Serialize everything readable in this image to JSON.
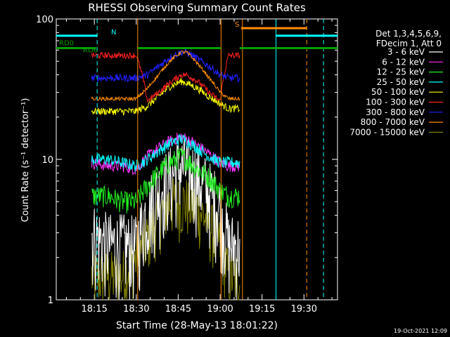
{
  "chart_data": {
    "type": "line",
    "title": "RHESSI Observing Summary Count Rates",
    "xlabel": "Start Time (28-May-13 18:01:22)",
    "ylabel": "Count Rate (s⁻¹ detector⁻¹)",
    "yscale": "log",
    "ylim": [
      1,
      100
    ],
    "y_ticks": [
      {
        "value": 1,
        "label": "1"
      },
      {
        "value": 10,
        "label": "10"
      },
      {
        "value": 100,
        "label": "100"
      }
    ],
    "xlim": [
      "18:01:22",
      "19:42:00"
    ],
    "x_ticks": [
      "18:15",
      "18:30",
      "18:45",
      "19:00",
      "19:15",
      "19:30"
    ],
    "grid": false,
    "legend_position": "right",
    "legend_header": [
      "Det 1,3,4,5,6,9,",
      "FDecim 1, Att 0"
    ],
    "timestamp": "19-Oct-2021 12:09",
    "data_gaps": [
      {
        "start": "18:01:22",
        "end": "18:14:00"
      },
      {
        "start": "19:08:00",
        "end": "19:42:00"
      }
    ],
    "flag_bars": [
      {
        "label": "RD0",
        "color": "#00a000",
        "y": 62,
        "segments": [
          [
            "18:01:22",
            "18:15:30"
          ],
          [
            "18:30:30",
            "19:00:20"
          ],
          [
            "19:07:00",
            "19:32:00"
          ],
          [
            "19:32:00",
            "19:42:00"
          ]
        ]
      },
      {
        "label": "RD6",
        "color": "#00a000",
        "y": 70,
        "segments": []
      },
      {
        "label": "N",
        "color": "#00ffff",
        "y": 76,
        "segments": [
          [
            "18:01:22",
            "18:16:00"
          ],
          [
            "19:20:00",
            "19:42:00"
          ]
        ]
      },
      {
        "label": "S",
        "color": "#ff8c00",
        "y": 86,
        "segments": [
          [
            "19:07:30",
            "19:31:00"
          ]
        ]
      }
    ],
    "markers": [
      {
        "time": "18:16:00",
        "color": "#00ffff",
        "style": "dashed"
      },
      {
        "time": "18:30:30",
        "color": "#ff8c00",
        "style": "solid"
      },
      {
        "time": "19:00:20",
        "color": "#ff8c00",
        "style": "solid"
      },
      {
        "time": "19:08:00",
        "color": "#ff8c00",
        "style": "solid"
      },
      {
        "time": "19:20:00",
        "color": "#00ffff",
        "style": "solid"
      },
      {
        "time": "19:31:00",
        "color": "#ff8c00",
        "style": "dashed"
      },
      {
        "time": "19:37:00",
        "color": "#00ffff",
        "style": "dashed"
      }
    ],
    "x_time_grid": [
      "18:14:00",
      "18:20:00",
      "18:25:00",
      "18:30:00",
      "18:34:00",
      "18:38:00",
      "18:42:00",
      "18:46:00",
      "18:48:00",
      "18:52:00",
      "18:56:00",
      "19:00:00",
      "19:03:00",
      "19:07:00"
    ],
    "series": [
      {
        "name": "3 - 6 keV",
        "color": "#ffffff",
        "noise": 0.65,
        "values": [
          3.0,
          2.5,
          2.5,
          2.4,
          4.5,
          6.0,
          7.5,
          9.0,
          8.8,
          7.5,
          6.0,
          4.5,
          2.5,
          2.5
        ]
      },
      {
        "name": "6 - 12 keV",
        "color": "#ff33ff",
        "noise": 0.1,
        "values": [
          9.5,
          9.0,
          9.0,
          8.5,
          10.5,
          12.0,
          13.5,
          14.5,
          14.0,
          12.5,
          11.0,
          9.5,
          9.0,
          9.0
        ]
      },
      {
        "name": "12 - 25 keV",
        "color": "#22ee22",
        "noise": 0.18,
        "values": [
          5.5,
          5.5,
          5.0,
          5.0,
          6.5,
          8.0,
          9.5,
          10.5,
          10.0,
          8.5,
          7.5,
          6.0,
          5.5,
          5.5
        ]
      },
      {
        "name": "25 - 50 keV",
        "color": "#00ffff",
        "noise": 0.1,
        "values": [
          10.0,
          10.0,
          9.5,
          9.0,
          10.0,
          11.5,
          13.0,
          14.0,
          13.5,
          12.0,
          10.5,
          9.5,
          9.5,
          9.5
        ]
      },
      {
        "name": "50 - 100 keV",
        "color": "#ffff00",
        "noise": 0.06,
        "values": [
          22.0,
          22.0,
          22.0,
          22.0,
          24.0,
          28.0,
          33.0,
          36.0,
          35.0,
          32.0,
          28.0,
          25.0,
          23.0,
          23.0
        ]
      },
      {
        "name": "100 - 300 keV",
        "color": "#ff2020",
        "noise": 0.05,
        "values": [
          55.0,
          55.0,
          55.0,
          55.0,
          26.0,
          30.0,
          35.0,
          40.0,
          40.0,
          36.0,
          30.0,
          26.0,
          55.0,
          55.0
        ]
      },
      {
        "name": "300 - 800 keV",
        "color": "#2020ff",
        "noise": 0.06,
        "values": [
          38.0,
          38.0,
          38.0,
          38.0,
          40.0,
          46.0,
          53.0,
          58.0,
          58.0,
          52.0,
          46.0,
          40.0,
          38.0,
          38.0
        ]
      },
      {
        "name": "800 - 7000 keV",
        "color": "#ff8c00",
        "noise": 0.03,
        "values": [
          27.0,
          27.0,
          27.0,
          27.0,
          32.0,
          40.0,
          50.0,
          58.0,
          58.0,
          48.0,
          38.0,
          30.0,
          27.0,
          27.0
        ]
      },
      {
        "name": "7000 - 15000 keV",
        "color": "#808000",
        "noise": 0.5,
        "values": [
          1.5,
          1.5,
          1.5,
          2.0,
          2.8,
          4.0,
          5.0,
          5.0,
          5.0,
          4.5,
          3.5,
          2.5,
          1.5,
          1.5
        ]
      }
    ]
  }
}
